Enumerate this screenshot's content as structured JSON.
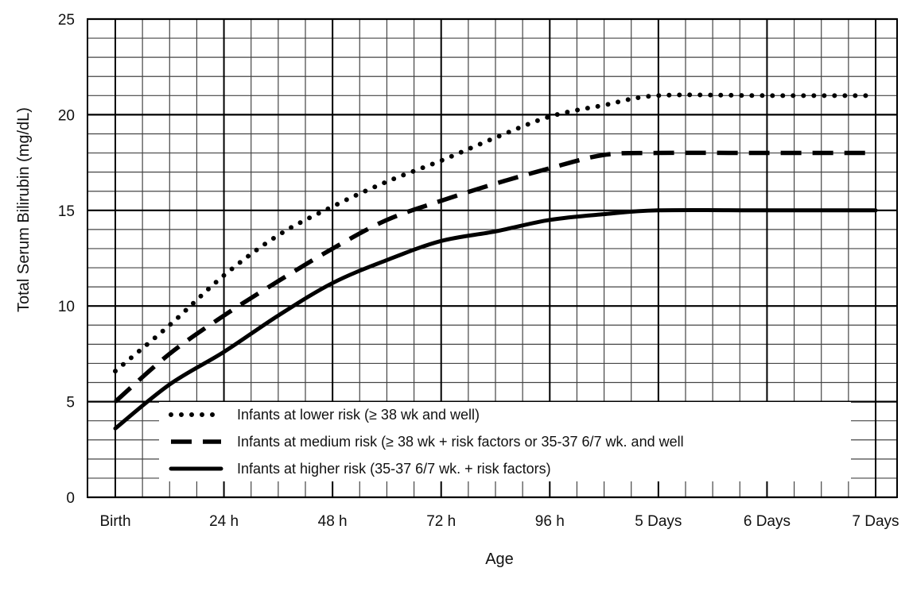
{
  "chart_data": {
    "type": "line",
    "title": "",
    "xlabel": "Age",
    "ylabel": "Total Serum Bilirubin (mg/dL)",
    "x_unit": "hours",
    "xlim": [
      0,
      168
    ],
    "ylim": [
      0,
      25
    ],
    "x_ticks": [
      {
        "x": 0,
        "label": "Birth"
      },
      {
        "x": 24,
        "label": "24 h"
      },
      {
        "x": 48,
        "label": "48 h"
      },
      {
        "x": 72,
        "label": "72 h"
      },
      {
        "x": 96,
        "label": "96 h"
      },
      {
        "x": 120,
        "label": "5 Days"
      },
      {
        "x": 144,
        "label": "6 Days"
      },
      {
        "x": 168,
        "label": "7 Days"
      }
    ],
    "y_ticks": [
      0,
      5,
      10,
      15,
      20,
      25
    ],
    "grid": true,
    "legend_position": "bottom-left",
    "series": [
      {
        "name": "Infants at lower risk (≥ 38 wk and well)",
        "style": "dotted",
        "x": [
          0,
          12,
          24,
          36,
          48,
          60,
          72,
          84,
          96,
          108,
          120,
          144,
          168
        ],
        "y": [
          6.6,
          9.0,
          11.6,
          13.7,
          15.2,
          16.5,
          17.6,
          18.8,
          19.9,
          20.5,
          21,
          21,
          21
        ]
      },
      {
        "name": "Infants at medium risk (≥ 38 wk + risk factors or 35-37 6/7 wk. and well",
        "style": "dashed",
        "x": [
          0,
          12,
          24,
          36,
          48,
          60,
          72,
          84,
          96,
          108,
          120,
          144,
          168
        ],
        "y": [
          5.0,
          7.5,
          9.5,
          11.3,
          13.0,
          14.5,
          15.5,
          16.4,
          17.2,
          17.9,
          18,
          18,
          18
        ]
      },
      {
        "name": "Infants at higher risk (35-37 6/7 wk. + risk factors)",
        "style": "solid",
        "x": [
          0,
          12,
          24,
          36,
          48,
          60,
          72,
          84,
          96,
          108,
          120,
          144,
          168
        ],
        "y": [
          3.6,
          5.9,
          7.6,
          9.5,
          11.2,
          12.4,
          13.4,
          13.9,
          14.5,
          14.8,
          15,
          15,
          15
        ]
      }
    ]
  }
}
